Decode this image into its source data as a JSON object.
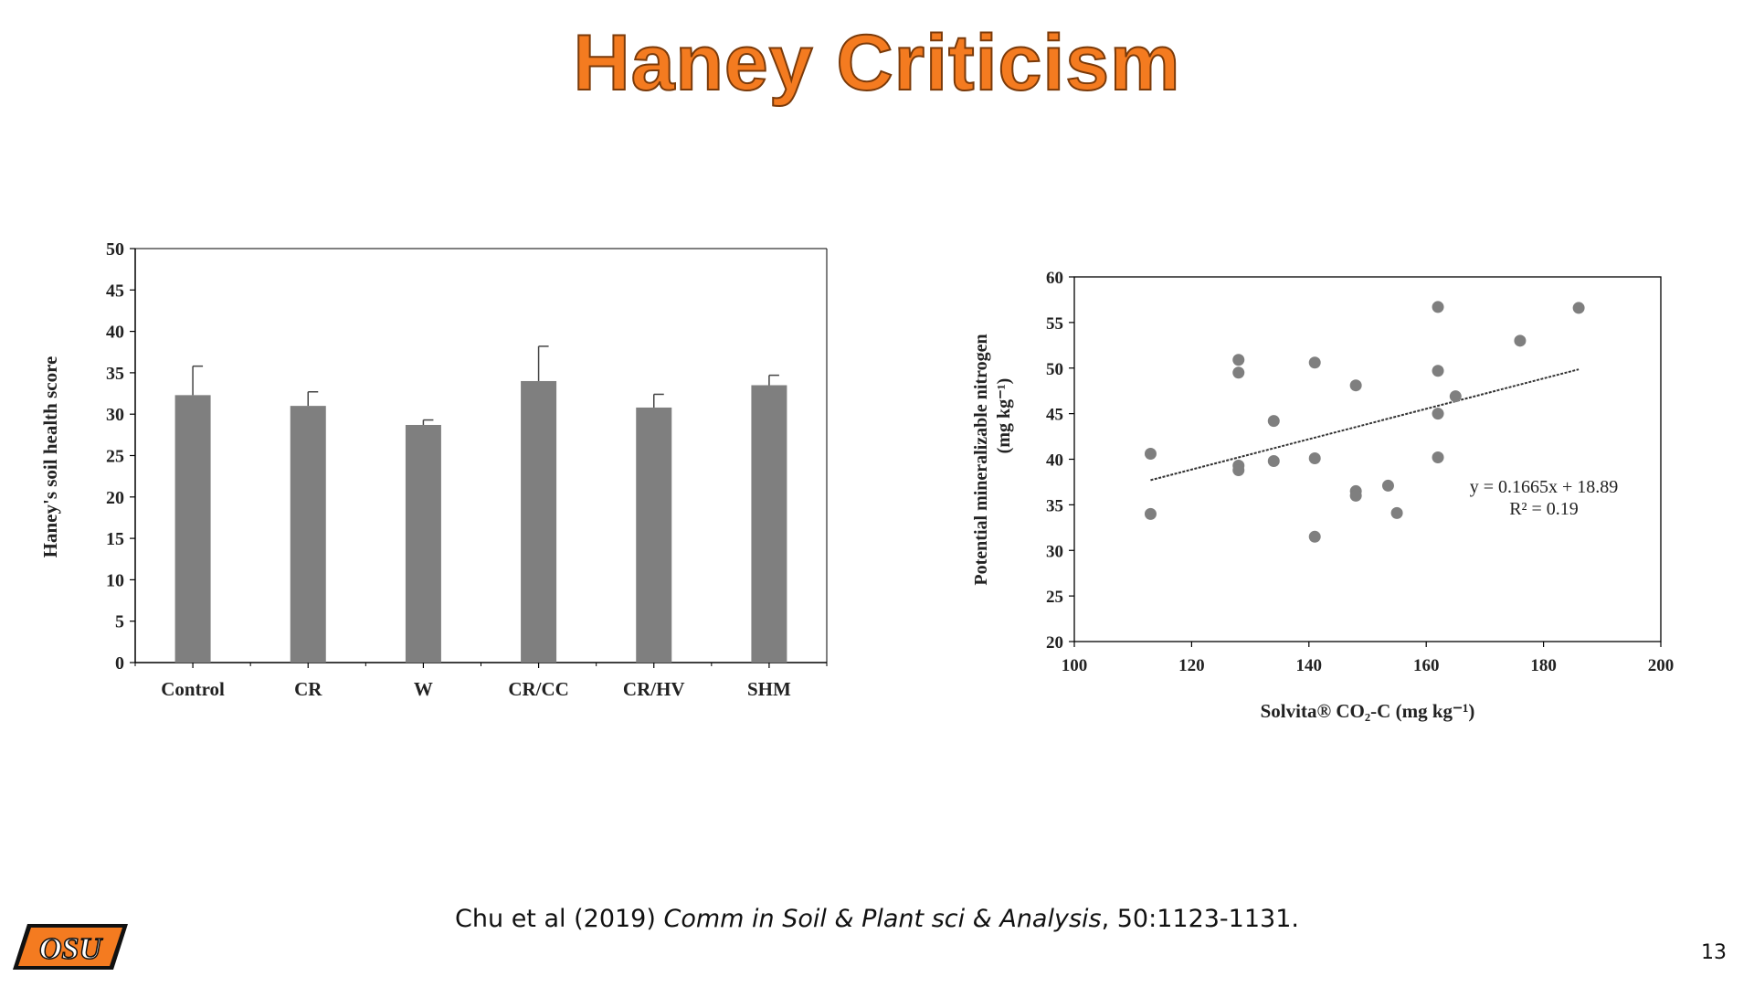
{
  "slide": {
    "title": "Haney Criticism",
    "page_number": "13",
    "logo_text": "OSU",
    "title_color": "#F47B20"
  },
  "citation": {
    "authors": "Chu et al (2019) ",
    "journal": "Comm in Soil & Plant sci & Analysis",
    "details": ", 50:1123-1131."
  },
  "chart_data": [
    {
      "type": "bar",
      "categories": [
        "Control",
        "CR",
        "W",
        "CR/CC",
        "CR/HV",
        "SHM"
      ],
      "values": [
        32.3,
        31.0,
        28.7,
        34.0,
        30.8,
        33.5
      ],
      "error": [
        3.5,
        1.7,
        0.6,
        4.2,
        1.6,
        1.2
      ],
      "ylabel": "Haney's soil health score",
      "xlabel": "",
      "ylim": [
        0,
        50
      ],
      "yticks": [
        "0",
        "5",
        "10",
        "15",
        "20",
        "25",
        "30",
        "35",
        "40",
        "45",
        "50"
      ],
      "bar_color": "#7f7f7f",
      "grid": false
    },
    {
      "type": "scatter",
      "xlabel": "Solvita® CO₂-C (mg kg⁻¹)",
      "ylabel_line1": "Potential mineralizable nitrogen",
      "ylabel_line2": "(mg kg⁻¹)",
      "xlim": [
        100,
        200
      ],
      "ylim": [
        20,
        60
      ],
      "xticks": [
        "100",
        "120",
        "140",
        "160",
        "180",
        "200"
      ],
      "yticks": [
        "20",
        "25",
        "30",
        "35",
        "40",
        "45",
        "50",
        "55",
        "60"
      ],
      "points": [
        [
          113,
          40.6
        ],
        [
          113,
          34.0
        ],
        [
          128,
          50.9
        ],
        [
          128,
          49.5
        ],
        [
          128,
          39.3
        ],
        [
          128,
          38.8
        ],
        [
          134,
          44.2
        ],
        [
          134,
          39.8
        ],
        [
          141,
          50.6
        ],
        [
          141,
          40.1
        ],
        [
          141,
          31.5
        ],
        [
          148,
          48.1
        ],
        [
          148,
          36.5
        ],
        [
          148,
          36.0
        ],
        [
          153.5,
          37.1
        ],
        [
          155,
          34.1
        ],
        [
          162,
          56.7
        ],
        [
          162,
          49.7
        ],
        [
          162,
          45.0
        ],
        [
          162,
          40.2
        ],
        [
          165,
          46.9
        ],
        [
          176,
          53.0
        ],
        [
          186,
          56.6
        ]
      ],
      "trendline": {
        "slope": 0.1665,
        "intercept": 18.89,
        "x_range": [
          113,
          186
        ]
      },
      "annotation": {
        "equation": "y = 0.1665x + 18.89",
        "r2": "R² = 0.19"
      },
      "point_color": "#7f7f7f",
      "grid": false
    }
  ]
}
